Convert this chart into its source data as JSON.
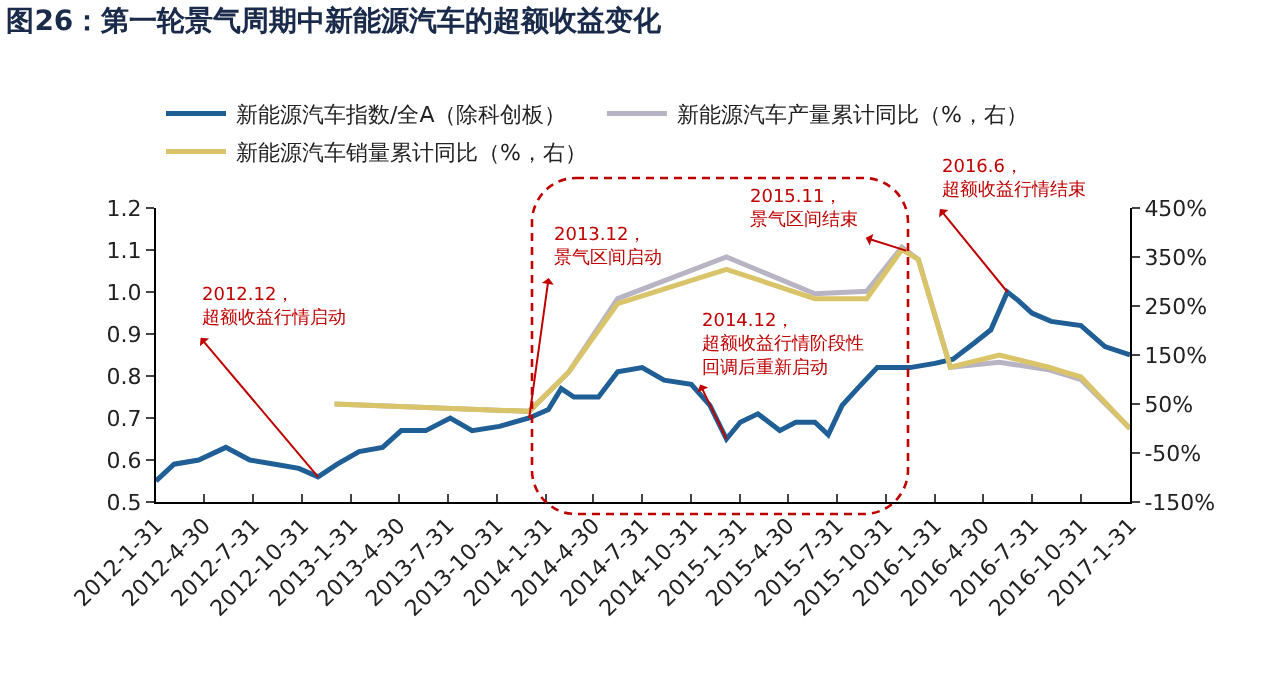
{
  "chart_data": {
    "type": "line",
    "title": "图26：第一轮景气周期中新能源汽车的超额收益变化",
    "xlim": [
      "2012-01-31",
      "2017-01-31"
    ],
    "xticks": [
      {
        "value": "2012-01-31",
        "label": "2012-1-31"
      },
      {
        "value": "2012-04-30",
        "label": "2012-4-30"
      },
      {
        "value": "2012-07-31",
        "label": "2012-7-31"
      },
      {
        "value": "2012-10-31",
        "label": "2012-10-31"
      },
      {
        "value": "2013-01-31",
        "label": "2013-1-31"
      },
      {
        "value": "2013-04-30",
        "label": "2013-4-30"
      },
      {
        "value": "2013-07-31",
        "label": "2013-7-31"
      },
      {
        "value": "2013-10-31",
        "label": "2013-10-31"
      },
      {
        "value": "2014-01-31",
        "label": "2014-1-31"
      },
      {
        "value": "2014-04-30",
        "label": "2014-4-30"
      },
      {
        "value": "2014-07-31",
        "label": "2014-7-31"
      },
      {
        "value": "2014-10-31",
        "label": "2014-10-31"
      },
      {
        "value": "2015-01-31",
        "label": "2015-1-31"
      },
      {
        "value": "2015-04-30",
        "label": "2015-4-30"
      },
      {
        "value": "2015-07-31",
        "label": "2015-7-31"
      },
      {
        "value": "2015-10-31",
        "label": "2015-10-31"
      },
      {
        "value": "2016-01-31",
        "label": "2016-1-31"
      },
      {
        "value": "2016-04-30",
        "label": "2016-4-30"
      },
      {
        "value": "2016-07-31",
        "label": "2016-7-31"
      },
      {
        "value": "2016-10-31",
        "label": "2016-10-31"
      },
      {
        "value": "2017-01-31",
        "label": "2017-1-31"
      }
    ],
    "ylim": [
      0.5,
      1.2
    ],
    "yticks": [
      {
        "value": 0.5,
        "label": "0.5"
      },
      {
        "value": 0.6,
        "label": "0.6"
      },
      {
        "value": 0.7,
        "label": "0.7"
      },
      {
        "value": 0.8,
        "label": "0.8"
      },
      {
        "value": 0.9,
        "label": "0.9"
      },
      {
        "value": 1.0,
        "label": "1.0"
      },
      {
        "value": 1.1,
        "label": "1.1"
      },
      {
        "value": 1.2,
        "label": "1.2"
      }
    ],
    "y2lim": [
      -150,
      450
    ],
    "y2ticks": [
      {
        "value": -150,
        "label": "-150%"
      },
      {
        "value": -50,
        "label": "-50%"
      },
      {
        "value": 50,
        "label": "50%"
      },
      {
        "value": 150,
        "label": "150%"
      },
      {
        "value": 250,
        "label": "250%"
      },
      {
        "value": 350,
        "label": "350%"
      },
      {
        "value": 450,
        "label": "450%"
      }
    ],
    "grid": false,
    "legend": "top left",
    "marker": "none",
    "line_style": "solid",
    "series": [
      {
        "name": "新能源汽车指数/全A（除科创板）",
        "color": "#1f5f96",
        "x": [
          "2012-01-31",
          "2012-03-05",
          "2012-04-20",
          "2012-06-10",
          "2012-07-25",
          "2012-09-10",
          "2012-10-25",
          "2012-11-30",
          "2013-01-05",
          "2013-02-15",
          "2013-03-31",
          "2013-05-05",
          "2013-06-20",
          "2013-08-05",
          "2013-09-15",
          "2013-11-05",
          "2013-12-31",
          "2014-02-05",
          "2014-03-01",
          "2014-03-25",
          "2014-05-10",
          "2014-06-15",
          "2014-07-31",
          "2014-09-10",
          "2014-10-31",
          "2014-12-05",
          "2015-01-05",
          "2015-01-31",
          "2015-03-05",
          "2015-04-15",
          "2015-05-15",
          "2015-06-20",
          "2015-07-15",
          "2015-08-10",
          "2015-09-15",
          "2015-10-15",
          "2015-12-15",
          "2016-01-31",
          "2016-03-05",
          "2016-04-15",
          "2016-05-15",
          "2016-06-15",
          "2016-07-05",
          "2016-07-31",
          "2016-09-05",
          "2016-10-31",
          "2016-12-15",
          "2017-01-31"
        ],
        "values": [
          0.55,
          0.59,
          0.6,
          0.63,
          0.6,
          0.59,
          0.58,
          0.56,
          0.59,
          0.62,
          0.63,
          0.67,
          0.67,
          0.7,
          0.67,
          0.68,
          0.7,
          0.72,
          0.77,
          0.75,
          0.75,
          0.81,
          0.82,
          0.79,
          0.78,
          0.73,
          0.65,
          0.69,
          0.71,
          0.67,
          0.69,
          0.69,
          0.66,
          0.73,
          0.78,
          0.82,
          0.82,
          0.83,
          0.84,
          0.88,
          0.91,
          1.0,
          0.98,
          0.95,
          0.93,
          0.92,
          0.87,
          0.85
        ]
      },
      {
        "name": "新能源汽车产量累计同比（%，右）",
        "color": "#b8b4c4",
        "axis": "y2",
        "x": [
          "2012-12-31",
          "2013-12-31",
          "2014-03-15",
          "2014-06-15",
          "2015-01-05",
          "2015-06-20",
          "2015-09-25",
          "2015-11-30",
          "2015-12-31",
          "2016-02-29",
          "2016-05-31",
          "2016-08-31",
          "2016-10-31",
          "2017-01-31"
        ],
        "values": [
          50,
          35,
          115,
          265,
          350,
          275,
          280,
          370,
          345,
          125,
          135,
          120,
          100,
          0
        ]
      },
      {
        "name": "新能源汽车销量累计同比（%，右）",
        "color": "#d9c46a",
        "axis": "y2",
        "x": [
          "2012-12-31",
          "2013-12-31",
          "2014-03-15",
          "2014-06-15",
          "2015-01-05",
          "2015-06-20",
          "2015-09-25",
          "2015-11-30",
          "2015-12-31",
          "2016-02-29",
          "2016-05-31",
          "2016-08-31",
          "2016-10-31",
          "2017-01-31"
        ],
        "values": [
          50,
          35,
          115,
          255,
          325,
          265,
          265,
          365,
          345,
          125,
          150,
          125,
          105,
          0
        ]
      }
    ],
    "annotations": [
      {
        "text": "2012.12，超额收益行情启动",
        "x": "2012-11-30",
        "y": 0.56
      },
      {
        "text": "2013.12，景气区间启动",
        "x": "2013-12-31",
        "y": 0.7
      },
      {
        "text": "2014.12，超额收益行情阶段性回调后重新启动",
        "x": "2015-01-05",
        "y": 0.65
      },
      "2015.11，景气区间结束",
      {
        "text": "2016.6，超额收益行情结束",
        "x": "2016-06-15",
        "y": 1.0
      }
    ]
  }
}
